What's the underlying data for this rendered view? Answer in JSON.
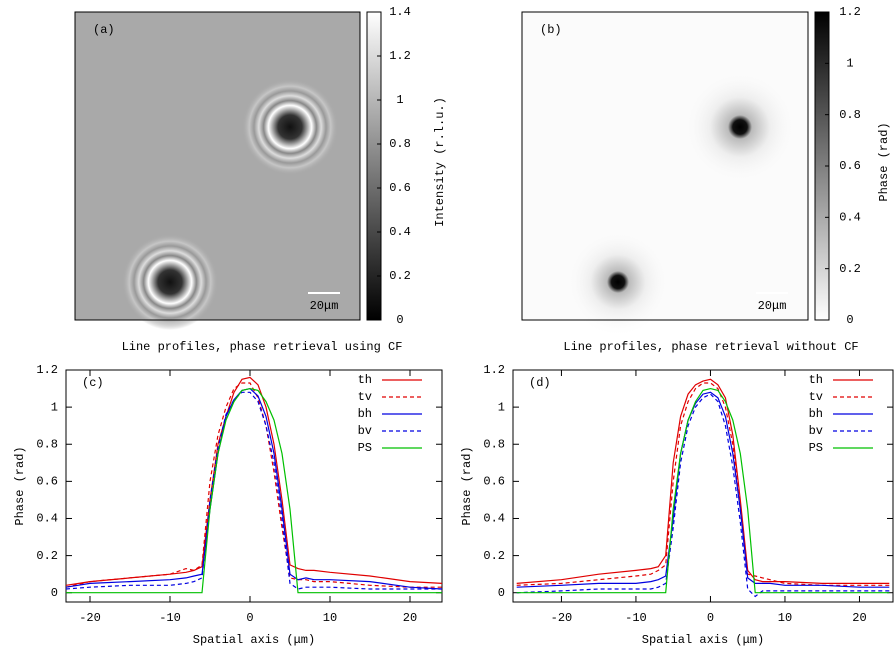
{
  "chart_data": [
    {
      "type": "image",
      "label": "(a)",
      "colormap": "gray",
      "clim": [
        0,
        1.4
      ],
      "cticks": [
        0,
        0.2,
        0.4,
        0.6,
        0.8,
        1,
        1.2,
        1.4
      ],
      "colorbar_label": "Intensity (r.l.u.)",
      "scalebar": "20μm"
    },
    {
      "type": "image",
      "label": "(b)",
      "colormap": "gray_r",
      "clim": [
        0,
        1.2
      ],
      "cticks": [
        0,
        0.2,
        0.4,
        0.6,
        0.8,
        1,
        1.2
      ],
      "colorbar_label": "Phase (rad)",
      "scalebar": "20μm"
    },
    {
      "type": "line",
      "title": "Line profiles, phase retrieval using CF",
      "label": "(c)",
      "xlabel": "Spatial axis (μm)",
      "ylabel": "Phase (rad)",
      "xlim": [
        -23,
        24
      ],
      "ylim": [
        -0.05,
        1.2
      ],
      "xticks": [
        -20,
        -10,
        0,
        10,
        20
      ],
      "yticks": [
        0,
        0.2,
        0.4,
        0.6,
        0.8,
        1,
        1.2
      ],
      "legend": "upper right",
      "x": [
        -23,
        -20,
        -15,
        -10,
        -8,
        -7,
        -6,
        -5,
        -4,
        -3,
        -2,
        -1,
        0,
        1,
        2,
        3,
        4,
        5,
        6,
        7,
        8,
        10,
        15,
        20,
        24
      ],
      "series": [
        {
          "name": "th",
          "color": "#e00000",
          "linestyle": "solid",
          "values": [
            0.04,
            0.06,
            0.08,
            0.1,
            0.11,
            0.12,
            0.14,
            0.5,
            0.8,
            0.95,
            1.08,
            1.15,
            1.16,
            1.12,
            1.0,
            0.8,
            0.5,
            0.15,
            0.13,
            0.12,
            0.12,
            0.11,
            0.09,
            0.06,
            0.05
          ]
        },
        {
          "name": "tv",
          "color": "#e00000",
          "linestyle": "dashed",
          "values": [
            0.03,
            0.06,
            0.08,
            0.1,
            0.13,
            0.12,
            0.15,
            0.6,
            0.85,
            1.0,
            1.1,
            1.13,
            1.13,
            1.05,
            0.9,
            0.65,
            0.35,
            0.08,
            0.07,
            0.07,
            0.06,
            0.06,
            0.04,
            0.03,
            0.03
          ]
        },
        {
          "name": "bh",
          "color": "#0000e0",
          "linestyle": "solid",
          "values": [
            0.03,
            0.05,
            0.06,
            0.07,
            0.08,
            0.09,
            0.1,
            0.45,
            0.75,
            0.95,
            1.04,
            1.09,
            1.1,
            1.06,
            0.95,
            0.75,
            0.45,
            0.1,
            0.07,
            0.08,
            0.07,
            0.07,
            0.06,
            0.03,
            0.02
          ]
        },
        {
          "name": "bv",
          "color": "#0000e0",
          "linestyle": "dashed",
          "values": [
            0.02,
            0.03,
            0.04,
            0.04,
            0.05,
            0.06,
            0.08,
            0.5,
            0.78,
            0.96,
            1.04,
            1.08,
            1.08,
            1.03,
            0.9,
            0.7,
            0.4,
            0.05,
            0.02,
            0.03,
            0.03,
            0.03,
            0.02,
            0.02,
            0.02
          ]
        },
        {
          "name": "PS",
          "color": "#00c000",
          "linestyle": "solid",
          "values": [
            0,
            0,
            0,
            0,
            0,
            0,
            0,
            0.45,
            0.75,
            0.93,
            1.03,
            1.09,
            1.1,
            1.09,
            1.03,
            0.93,
            0.75,
            0.45,
            0,
            0,
            0,
            0,
            0,
            0,
            0
          ]
        }
      ]
    },
    {
      "type": "line",
      "title": "Line profiles, phase retrieval without CF",
      "label": "(d)",
      "xlabel": "Spatial axis (μm)",
      "ylabel": "Phase (rad)",
      "xlim": [
        -26.5,
        24.5
      ],
      "ylim": [
        -0.05,
        1.2
      ],
      "xticks": [
        -20,
        -10,
        0,
        10,
        20
      ],
      "yticks": [
        0,
        0.2,
        0.4,
        0.6,
        0.8,
        1,
        1.2
      ],
      "legend": "upper right",
      "x": [
        -26,
        -20,
        -15,
        -10,
        -8,
        -7,
        -6,
        -5,
        -4,
        -3,
        -2,
        -1,
        0,
        1,
        2,
        3,
        4,
        5,
        6,
        7,
        8,
        10,
        15,
        20,
        24
      ],
      "series": [
        {
          "name": "th",
          "color": "#e00000",
          "linestyle": "solid",
          "values": [
            0.05,
            0.07,
            0.1,
            0.12,
            0.13,
            0.14,
            0.2,
            0.7,
            0.95,
            1.07,
            1.12,
            1.14,
            1.15,
            1.12,
            1.05,
            0.85,
            0.5,
            0.12,
            0.07,
            0.06,
            0.06,
            0.06,
            0.05,
            0.05,
            0.05
          ]
        },
        {
          "name": "tv",
          "color": "#e00000",
          "linestyle": "dashed",
          "values": [
            0.04,
            0.05,
            0.07,
            0.09,
            0.1,
            0.12,
            0.15,
            0.6,
            0.9,
            1.03,
            1.1,
            1.13,
            1.13,
            1.1,
            1.0,
            0.8,
            0.45,
            0.1,
            0.09,
            0.08,
            0.07,
            0.05,
            0.04,
            0.04,
            0.04
          ]
        },
        {
          "name": "bh",
          "color": "#0000e0",
          "linestyle": "solid",
          "values": [
            0.03,
            0.04,
            0.05,
            0.05,
            0.06,
            0.07,
            0.09,
            0.4,
            0.75,
            0.93,
            1.02,
            1.07,
            1.08,
            1.05,
            0.95,
            0.75,
            0.45,
            0.08,
            0.05,
            0.05,
            0.05,
            0.04,
            0.04,
            0.03,
            0.03
          ]
        },
        {
          "name": "bv",
          "color": "#0000e0",
          "linestyle": "dashed",
          "values": [
            0,
            0.01,
            0.02,
            0.02,
            0.02,
            0.03,
            0.05,
            0.35,
            0.7,
            0.9,
            1.0,
            1.05,
            1.07,
            1.03,
            0.9,
            0.68,
            0.38,
            0.02,
            -0.02,
            0.01,
            0.01,
            0.01,
            0.01,
            0.01,
            0.01
          ]
        },
        {
          "name": "PS",
          "color": "#00c000",
          "linestyle": "solid",
          "values": [
            0,
            0,
            0,
            0,
            0,
            0,
            0,
            0.45,
            0.75,
            0.93,
            1.03,
            1.09,
            1.1,
            1.09,
            1.03,
            0.93,
            0.75,
            0.45,
            0,
            0,
            0,
            0,
            0,
            0,
            0
          ]
        }
      ]
    }
  ]
}
